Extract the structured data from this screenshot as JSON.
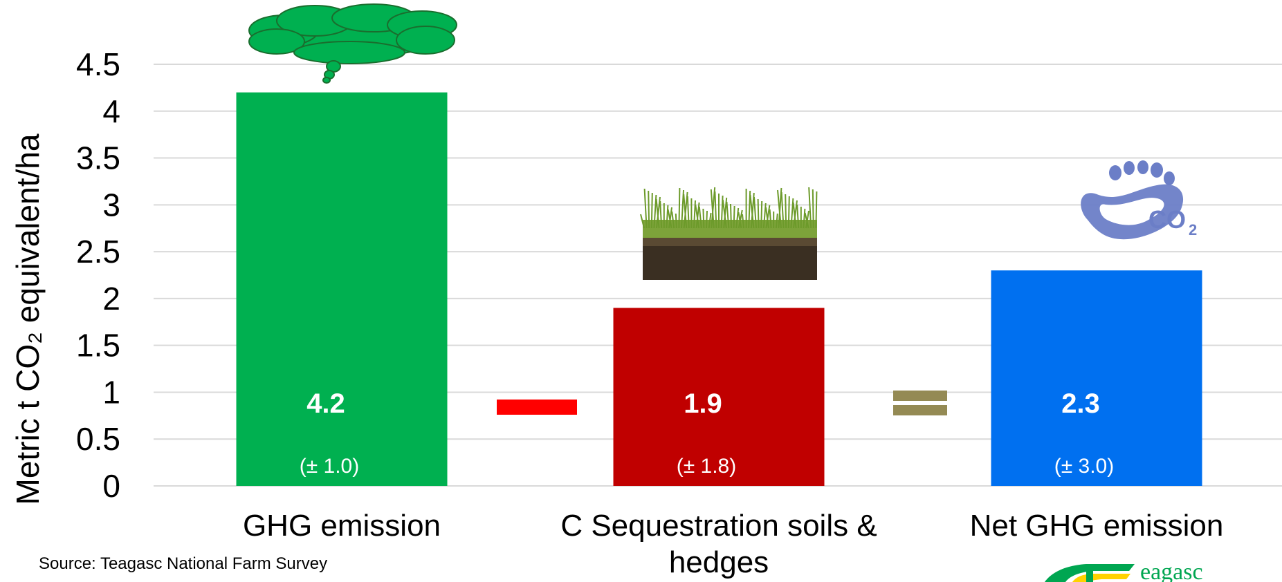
{
  "chart_data": {
    "type": "bar",
    "categories": [
      "GHG emission",
      "C Sequestration soils & hedges",
      "Net GHG emission"
    ],
    "values": [
      4.2,
      1.9,
      2.3
    ],
    "value_labels": [
      "4.2",
      "1.9",
      "2.3"
    ],
    "error_labels": [
      "(± 1.0)",
      "(± 1.8)",
      "(± 3.0)"
    ],
    "bar_colors": [
      "#00b050",
      "#c00000",
      "#0070f0"
    ],
    "ylabel": "Metric t CO₂ equivalent/ha",
    "ylim": [
      0,
      4.5
    ],
    "yticks": [
      "0",
      "0.5",
      "1",
      "1.5",
      "2",
      "2.5",
      "3",
      "3.5",
      "4",
      "4.5"
    ],
    "grid": true,
    "operators": [
      "minus",
      "equals"
    ],
    "operator_colors": [
      "#ff0000",
      "#948a54"
    ]
  },
  "source_text": "Source: Teagasc National Farm Survey",
  "logo_text": "eagasc",
  "logo_colors": [
    "#00a651",
    "#ffd200"
  ],
  "icons": [
    "cloud-icon",
    "grass-soil-image",
    "co2-footprint-icon"
  ]
}
